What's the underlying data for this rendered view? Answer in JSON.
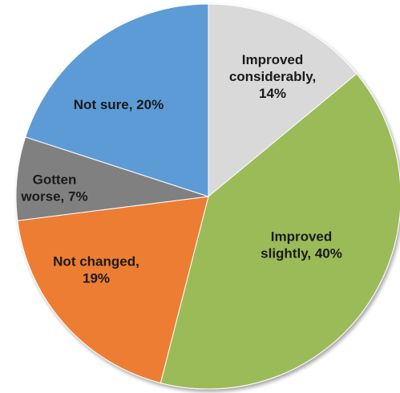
{
  "chart_data": {
    "type": "pie",
    "start_angle_deg": 0,
    "direction": "clockwise",
    "slices": [
      {
        "label_lines": [
          "Improved",
          "considerably,",
          "14%"
        ],
        "value": 14,
        "color": "#d9d9d9"
      },
      {
        "label_lines": [
          "Improved",
          "slightly, 40%"
        ],
        "value": 40,
        "color": "#9bbb59"
      },
      {
        "label_lines": [
          "Not changed,",
          "19%"
        ],
        "value": 19,
        "color": "#ed7d31"
      },
      {
        "label_lines": [
          "Gotten",
          "worse, 7%"
        ],
        "value": 7,
        "color": "#808080"
      },
      {
        "label_lines": [
          "Not sure, 20%"
        ],
        "value": 20,
        "color": "#5b9bd5"
      }
    ]
  }
}
